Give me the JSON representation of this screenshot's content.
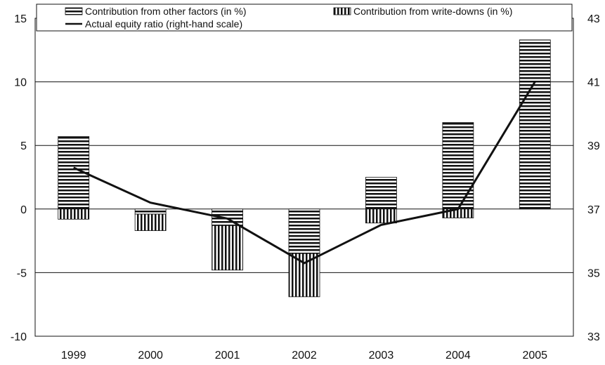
{
  "chart_data": {
    "type": "bar",
    "categories": [
      "1999",
      "2000",
      "2001",
      "2002",
      "2003",
      "2004",
      "2005"
    ],
    "series": [
      {
        "name": "Contribution from other factors (in %)",
        "type": "bar",
        "values": [
          5.7,
          -0.4,
          -1.3,
          -3.5,
          2.5,
          6.8,
          13.3
        ]
      },
      {
        "name": "Contribution from write-downs (in %)",
        "type": "bar",
        "values": [
          -0.8,
          -1.3,
          -3.5,
          -3.4,
          -1.1,
          -0.7,
          0.0
        ]
      },
      {
        "name": "Actual equity ratio (right-hand scale)",
        "type": "line",
        "axis": "right",
        "values": [
          38.3,
          37.2,
          36.7,
          35.3,
          36.5,
          37.0,
          41.0
        ]
      }
    ],
    "y_left": {
      "min": -10,
      "max": 15,
      "ticks": [
        "-10",
        "-5",
        "0",
        "5",
        "10",
        "15"
      ]
    },
    "y_right": {
      "min": 33,
      "max": 43,
      "ticks": [
        "33",
        "35",
        "37",
        "39",
        "41",
        "43"
      ]
    },
    "stacked": true,
    "grid": "horizontal",
    "legend_position": "top"
  }
}
